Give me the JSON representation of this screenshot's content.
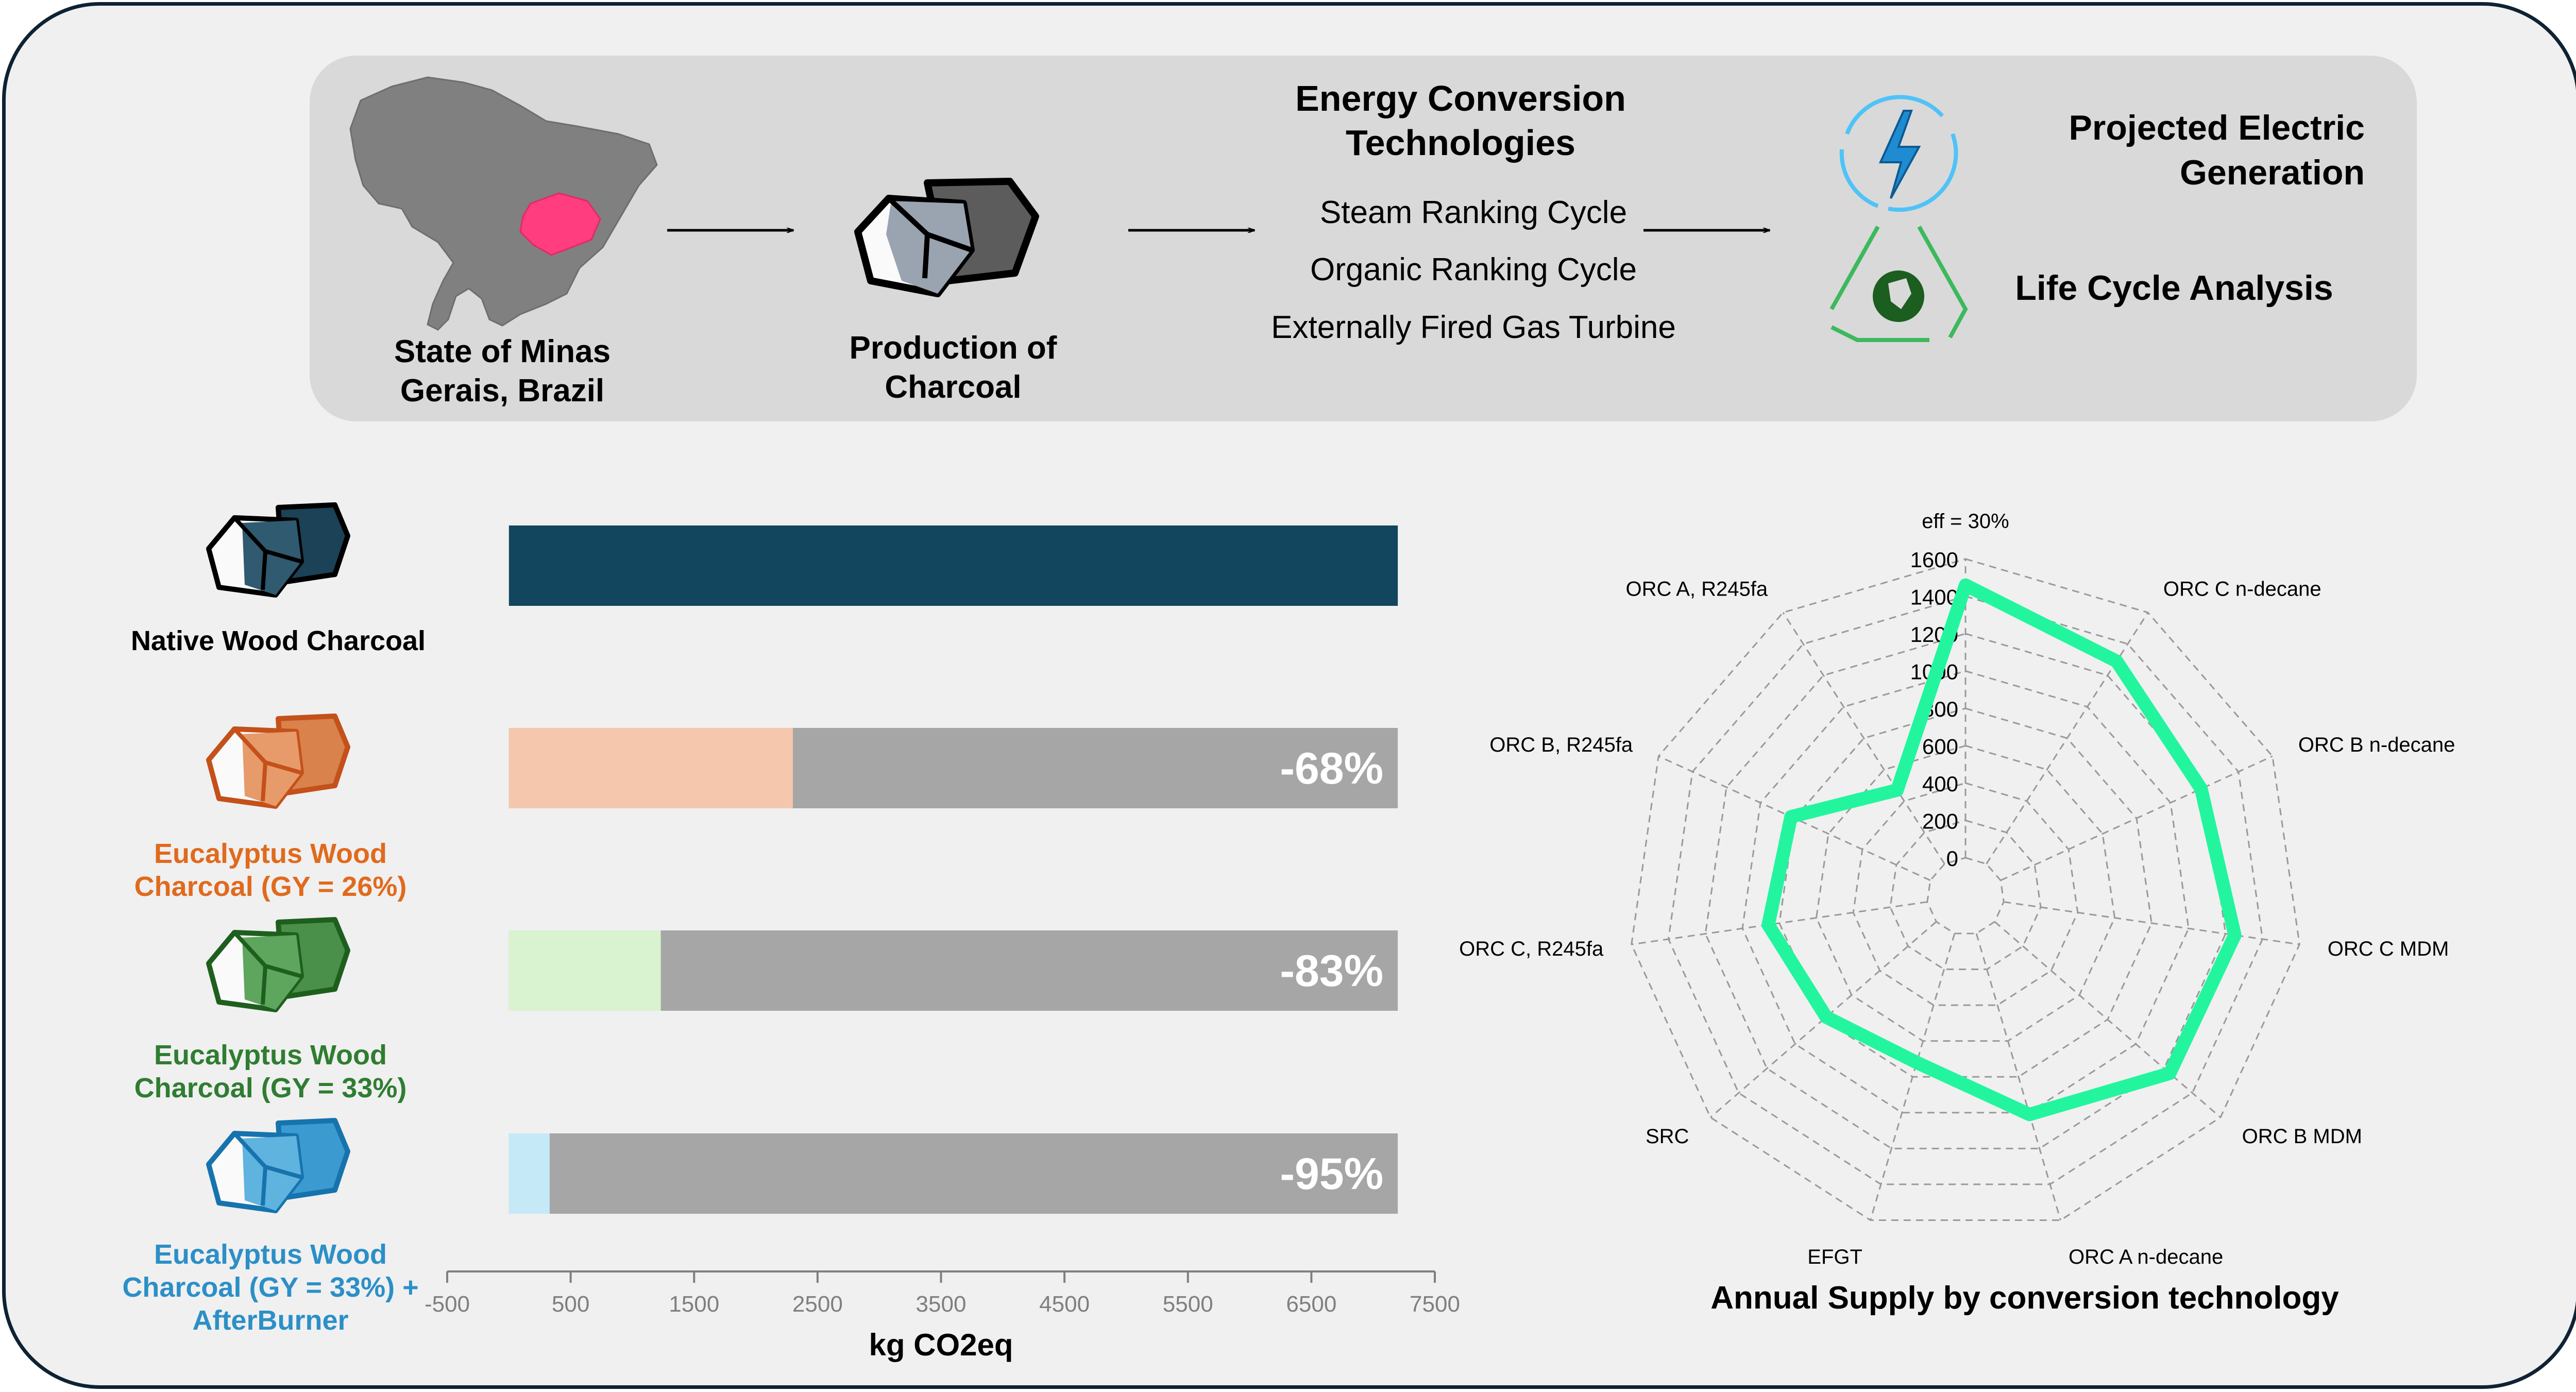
{
  "banner": {
    "region_label": "State of Minas Gerais, Brazil",
    "production_label": "Production of Charcoal",
    "tech_title": "Energy  Conversion Technologies",
    "tech_items": [
      "Steam Ranking Cycle",
      "Organic Ranking Cycle",
      "Externally Fired Gas Turbine"
    ],
    "outcome_1": "Projected Electric Generation",
    "outcome_2": "Life Cycle Analysis"
  },
  "legend": [
    {
      "label": "Native Wood Charcoal",
      "color": "#12455e"
    },
    {
      "label": "Eucalyptus Wood Charcoal (GY = 26%)",
      "color": "#e06a1d"
    },
    {
      "label": "Eucalyptus Wood Charcoal (GY = 33%)",
      "color": "#2f7d31"
    },
    {
      "label": "Eucalyptus Wood Charcoal (GY = 33%) + AfterBurner",
      "color": "#2c8fc7"
    }
  ],
  "chart_data": [
    {
      "type": "bar",
      "orientation": "horizontal",
      "categories": [
        "Native Wood Charcoal",
        "Eucalyptus Wood Charcoal (GY = 26%)",
        "Eucalyptus Wood Charcoal (GY = 33%)",
        "Eucalyptus Wood Charcoal (GY = 33%) + AfterBurner"
      ],
      "values": [
        7200,
        2300,
        1230,
        330
      ],
      "reference": 7200,
      "reductions": [
        "",
        "-68%",
        "-83%",
        "-95%"
      ],
      "bar_colors": [
        "#12455e",
        "#f5c7ac",
        "#d9f2d0",
        "#c6e9f8"
      ],
      "remainder_color": "#a6a6a6",
      "xlabel": "kg CO2eq",
      "xlim": [
        -500,
        7500
      ],
      "xticks": [
        -500,
        500,
        1500,
        2500,
        3500,
        4500,
        5500,
        6500,
        7500
      ]
    },
    {
      "type": "radar",
      "title": "Annual Supply by conversion technology",
      "axes": [
        "eff = 30%",
        "ORC C n-decane",
        "ORC B n-decane",
        "ORC C MDM",
        "ORC B MDM",
        "ORC A n-decane",
        "EFGT",
        "SRC",
        "ORC C, R245fa",
        "ORC B, R245fa",
        "ORC A, R245fa"
      ],
      "values": [
        1460,
        1290,
        1180,
        1250,
        1240,
        1010,
        720,
        780,
        860,
        820,
        470
      ],
      "rlim": [
        0,
        1600
      ],
      "rticks": [
        0,
        200,
        400,
        600,
        800,
        1000,
        1200,
        1400,
        1600
      ],
      "rtick_labels": [
        "0",
        "200",
        "400",
        "600",
        "800",
        "1000",
        "1200",
        "1400",
        "1600"
      ],
      "line_color": "#23f59e",
      "grid": true
    }
  ]
}
